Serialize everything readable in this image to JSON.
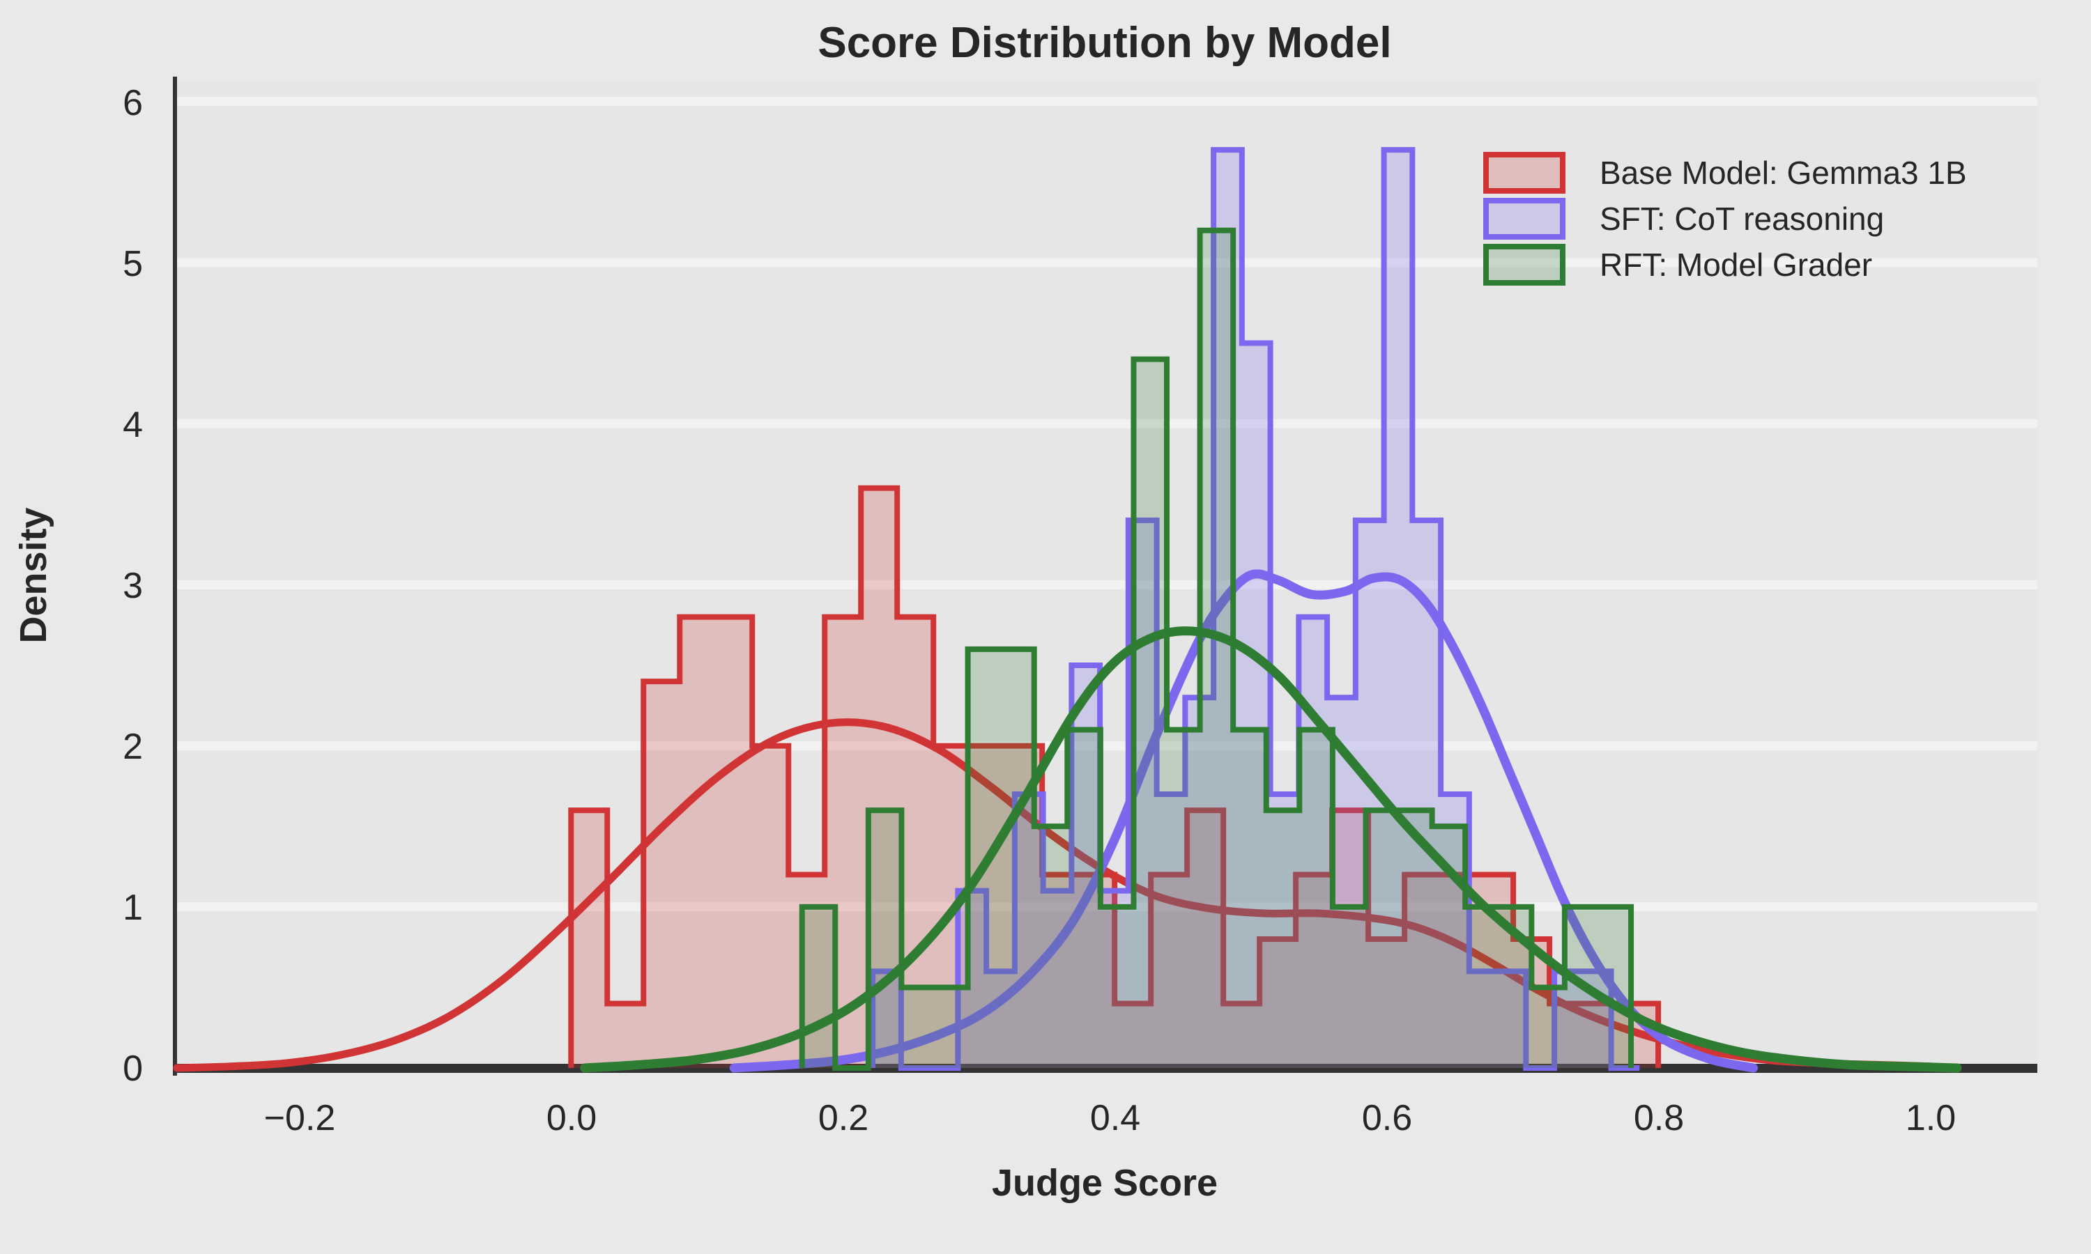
{
  "figure": {
    "bg": "#e9e9e9",
    "axes_bg": "#e6e6e6",
    "grid_color": "#f2f2f2",
    "spine_color": "#333333",
    "text_color": "#262626"
  },
  "title": {
    "text": "Score Distribution by Model"
  },
  "axes": {
    "xlabel": "Judge Score",
    "ylabel": "Density",
    "x_ticks": [
      {
        "value": -0.2,
        "label": "−0.2"
      },
      {
        "value": 0.0,
        "label": "0.0"
      },
      {
        "value": 0.2,
        "label": "0.2"
      },
      {
        "value": 0.4,
        "label": "0.4"
      },
      {
        "value": 0.6,
        "label": "0.6"
      },
      {
        "value": 0.8,
        "label": "0.8"
      },
      {
        "value": 1.0,
        "label": "1.0"
      }
    ],
    "y_ticks": [
      {
        "value": 0,
        "label": "0"
      },
      {
        "value": 1,
        "label": "1"
      },
      {
        "value": 2,
        "label": "2"
      },
      {
        "value": 3,
        "label": "3"
      },
      {
        "value": 4,
        "label": "4"
      },
      {
        "value": 5,
        "label": "5"
      },
      {
        "value": 6,
        "label": "6"
      }
    ]
  },
  "legend": {
    "items": [
      {
        "label": "Base Model: Gemma3 1B",
        "edge": "#d03434",
        "fill": "rgba(208,52,52,0.22)"
      },
      {
        "label": "SFT: CoT reasoning",
        "edge": "#7b68ee",
        "fill": "rgba(123,104,238,0.24)"
      },
      {
        "label": "RFT: Model Grader",
        "edge": "#2e7d32",
        "fill": "rgba(46,125,50,0.22)"
      }
    ]
  },
  "chart_data": {
    "type": "histogram+kde",
    "title": "Score Distribution by Model",
    "xlabel": "Judge Score",
    "ylabel": "Density",
    "xlim": [
      -0.293,
      1.079
    ],
    "ylim": [
      0,
      6.12
    ],
    "x_tick_values": [
      -0.2,
      0.0,
      0.2,
      0.4,
      0.6,
      0.8,
      1.0
    ],
    "y_tick_values": [
      0,
      1,
      2,
      3,
      4,
      5,
      6
    ],
    "grid": "horizontal white gridlines at integer densities",
    "legend_position": "upper right",
    "series": [
      {
        "name": "Base Model: Gemma3 1B",
        "color": "#d03434",
        "fill": "rgba(208,52,52,0.22)",
        "line_width": 11,
        "hist": {
          "bin_start": 0.0,
          "bin_width": 0.026667,
          "heights": [
            1.6,
            0.4,
            2.4,
            2.8,
            2.8,
            2.0,
            1.2,
            2.8,
            3.6,
            2.8,
            2.0,
            2.0,
            2.0,
            1.2,
            1.2,
            0.4,
            1.2,
            1.6,
            0.4,
            0.8,
            1.2,
            1.6,
            0.8,
            1.2,
            1.2,
            1.2,
            0.8,
            0.4,
            0.4,
            0.4
          ]
        },
        "kde": {
          "x": [
            -0.29,
            -0.25,
            -0.21,
            -0.17,
            -0.13,
            -0.09,
            -0.05,
            -0.01,
            0.03,
            0.07,
            0.11,
            0.15,
            0.19,
            0.23,
            0.27,
            0.31,
            0.35,
            0.39,
            0.43,
            0.47,
            0.51,
            0.55,
            0.59,
            0.62,
            0.65,
            0.68,
            0.71,
            0.74,
            0.77,
            0.8,
            0.84,
            0.88,
            0.92,
            0.96,
            1.0,
            1.015
          ],
          "y": [
            0.0,
            0.01,
            0.03,
            0.08,
            0.17,
            0.32,
            0.55,
            0.85,
            1.18,
            1.52,
            1.82,
            2.04,
            2.14,
            2.12,
            1.98,
            1.74,
            1.47,
            1.24,
            1.07,
            0.99,
            0.96,
            0.96,
            0.93,
            0.88,
            0.78,
            0.64,
            0.49,
            0.36,
            0.26,
            0.18,
            0.1,
            0.05,
            0.03,
            0.02,
            0.01,
            0.0
          ]
        }
      },
      {
        "name": "SFT: CoT reasoning",
        "color": "#7b68ee",
        "fill": "rgba(123,104,238,0.24)",
        "line_width": 13,
        "hist": {
          "bin_start": 0.222,
          "bin_width": 0.0209,
          "heights": [
            0.6,
            0,
            0,
            1.1,
            0.6,
            1.7,
            1.1,
            2.5,
            1.1,
            3.4,
            1.7,
            2.3,
            5.7,
            4.5,
            1.7,
            2.8,
            2.3,
            3.4,
            5.7,
            3.4,
            1.7,
            0.6,
            0.6,
            0,
            0.6,
            0.6,
            0
          ]
        },
        "kde": {
          "x": [
            0.12,
            0.16,
            0.2,
            0.24,
            0.28,
            0.31,
            0.34,
            0.37,
            0.4,
            0.43,
            0.46,
            0.48,
            0.5,
            0.52,
            0.545,
            0.57,
            0.59,
            0.61,
            0.63,
            0.65,
            0.67,
            0.69,
            0.71,
            0.73,
            0.75,
            0.77,
            0.79,
            0.81,
            0.84,
            0.87
          ],
          "y": [
            0.0,
            0.02,
            0.05,
            0.12,
            0.24,
            0.38,
            0.6,
            0.92,
            1.42,
            2.05,
            2.62,
            2.9,
            3.06,
            3.03,
            2.94,
            2.96,
            3.04,
            3.03,
            2.88,
            2.6,
            2.25,
            1.85,
            1.45,
            1.05,
            0.72,
            0.46,
            0.27,
            0.15,
            0.05,
            0.0
          ]
        }
      },
      {
        "name": "RFT: Model Grader",
        "color": "#2e7d32",
        "fill": "rgba(46,125,50,0.22)",
        "line_width": 13,
        "hist": {
          "bin_start": 0.17,
          "bin_width": 0.0244,
          "heights": [
            1.0,
            0,
            1.6,
            0.5,
            0.5,
            2.6,
            2.6,
            1.5,
            2.1,
            1.0,
            4.4,
            2.1,
            5.2,
            2.1,
            1.6,
            2.1,
            1.0,
            1.6,
            1.6,
            1.5,
            1.0,
            1.0,
            0.5,
            1.0,
            1.0
          ]
        },
        "kde": {
          "x": [
            0.01,
            0.05,
            0.09,
            0.13,
            0.17,
            0.21,
            0.25,
            0.29,
            0.33,
            0.37,
            0.4,
            0.43,
            0.46,
            0.49,
            0.52,
            0.55,
            0.58,
            0.61,
            0.64,
            0.67,
            0.7,
            0.73,
            0.76,
            0.79,
            0.82,
            0.86,
            0.9,
            0.94,
            0.98,
            1.02
          ],
          "y": [
            0.0,
            0.02,
            0.05,
            0.11,
            0.22,
            0.4,
            0.68,
            1.08,
            1.62,
            2.2,
            2.52,
            2.68,
            2.71,
            2.63,
            2.44,
            2.15,
            1.85,
            1.55,
            1.28,
            1.02,
            0.8,
            0.6,
            0.43,
            0.29,
            0.19,
            0.1,
            0.05,
            0.02,
            0.01,
            0.0
          ]
        }
      }
    ]
  }
}
